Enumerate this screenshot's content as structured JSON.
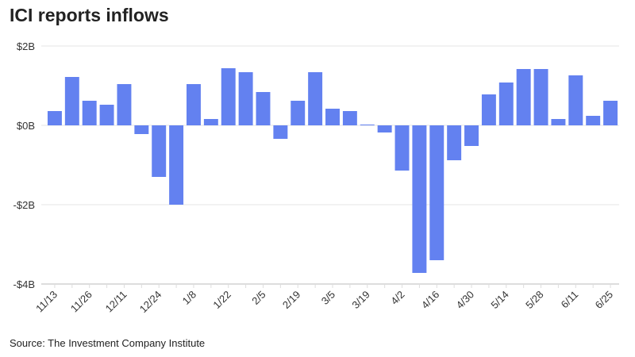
{
  "chart_data": {
    "type": "bar",
    "title": "ICI reports inflows",
    "source": "Source: The Investment Company Institute",
    "xlabel": "",
    "ylabel": "",
    "ylim": [
      -4,
      2
    ],
    "yticks": [
      {
        "v": 2,
        "label": "$2B"
      },
      {
        "v": 0,
        "label": "$0B"
      },
      {
        "v": -2,
        "label": "-$2B"
      },
      {
        "v": -4,
        "label": "-$4B"
      }
    ],
    "x_tick_labels": [
      "11/13",
      "11/26",
      "12/11",
      "12/24",
      "1/8",
      "1/22",
      "2/5",
      "2/19",
      "3/5",
      "3/19",
      "4/2",
      "4/16",
      "4/30",
      "5/14",
      "5/28",
      "6/11",
      "6/25"
    ],
    "units": "billions USD",
    "values": [
      0.36,
      1.22,
      0.62,
      0.52,
      1.04,
      -0.22,
      -1.3,
      -2.0,
      1.04,
      0.16,
      1.44,
      1.34,
      0.84,
      -0.34,
      0.62,
      1.34,
      0.42,
      0.36,
      0.02,
      -0.18,
      -1.14,
      -3.72,
      -3.4,
      -0.88,
      -0.52,
      0.78,
      1.08,
      1.42,
      1.42,
      0.16,
      1.26,
      0.24,
      0.62
    ],
    "bar_color": "#6381f0",
    "grid": true
  }
}
